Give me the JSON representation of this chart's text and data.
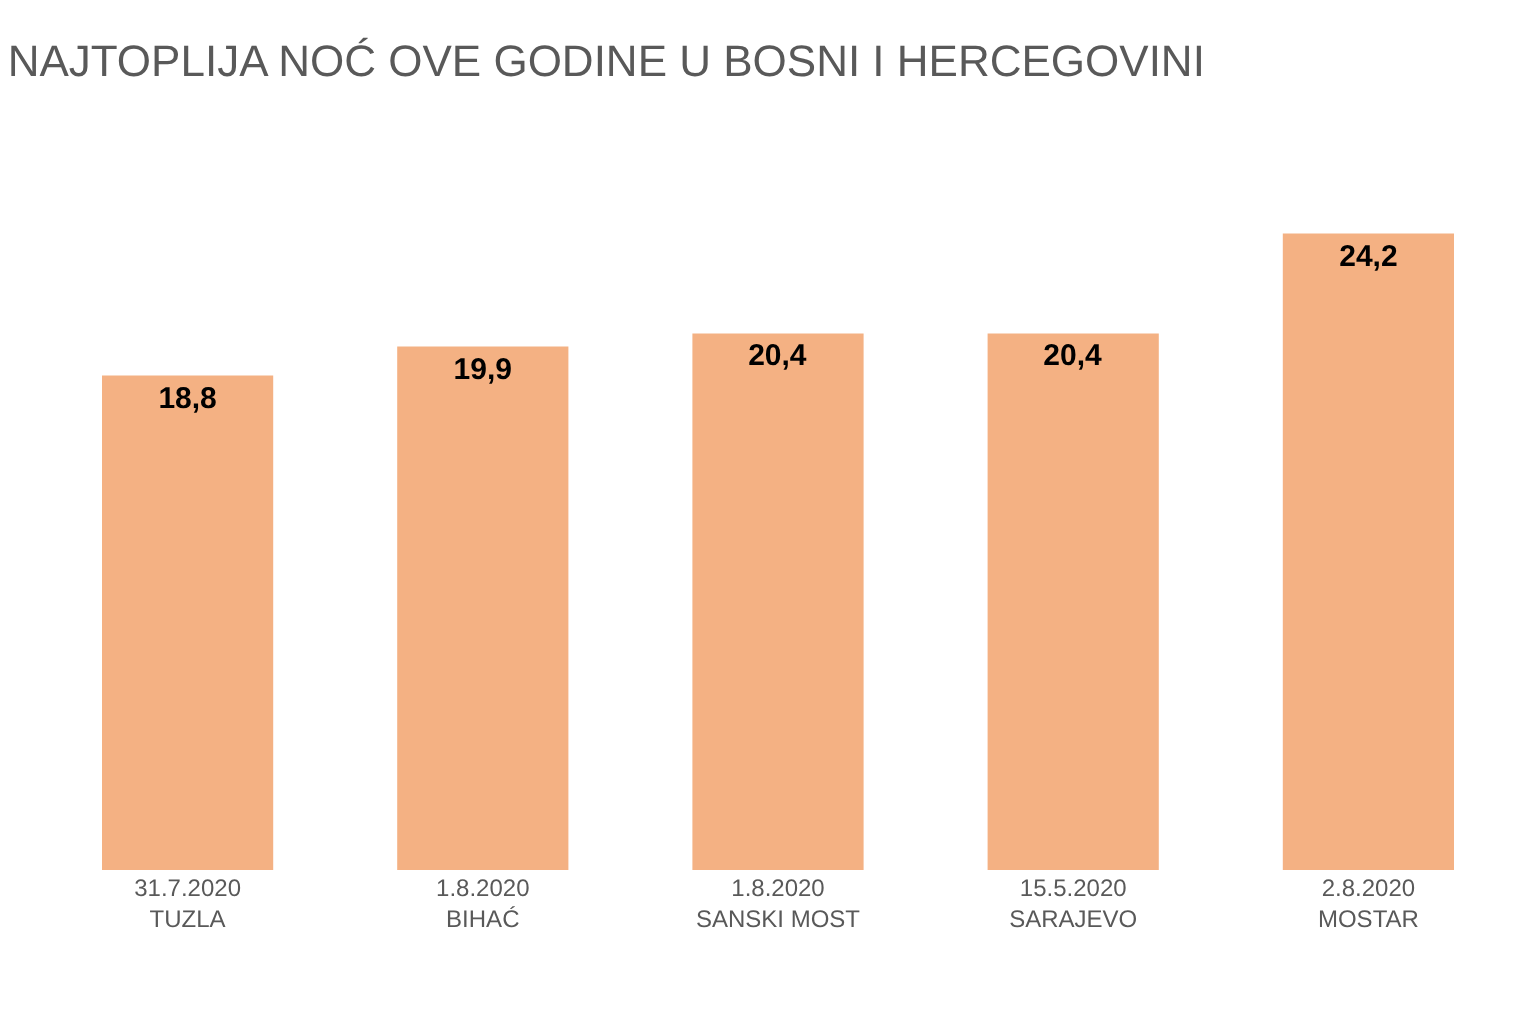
{
  "chart_data": {
    "type": "bar",
    "title": "NAJTOPLIJA NOĆ OVE GODINE U BOSNI I HERCEGOVINI",
    "categories": [
      "31.7.2020\nTUZLA",
      "1.8.2020\nBIHAĆ",
      "1.8.2020\nSANSKI MOST",
      "15.5.2020\nSARAJEVO",
      "2.8.2020\nMOSTAR"
    ],
    "values": [
      18.8,
      19.9,
      20.4,
      20.4,
      24.2
    ],
    "value_labels": [
      "18,8",
      "19,9",
      "20,4",
      "20,4",
      "24,2"
    ],
    "color": "#f4b183",
    "legend": false
  }
}
